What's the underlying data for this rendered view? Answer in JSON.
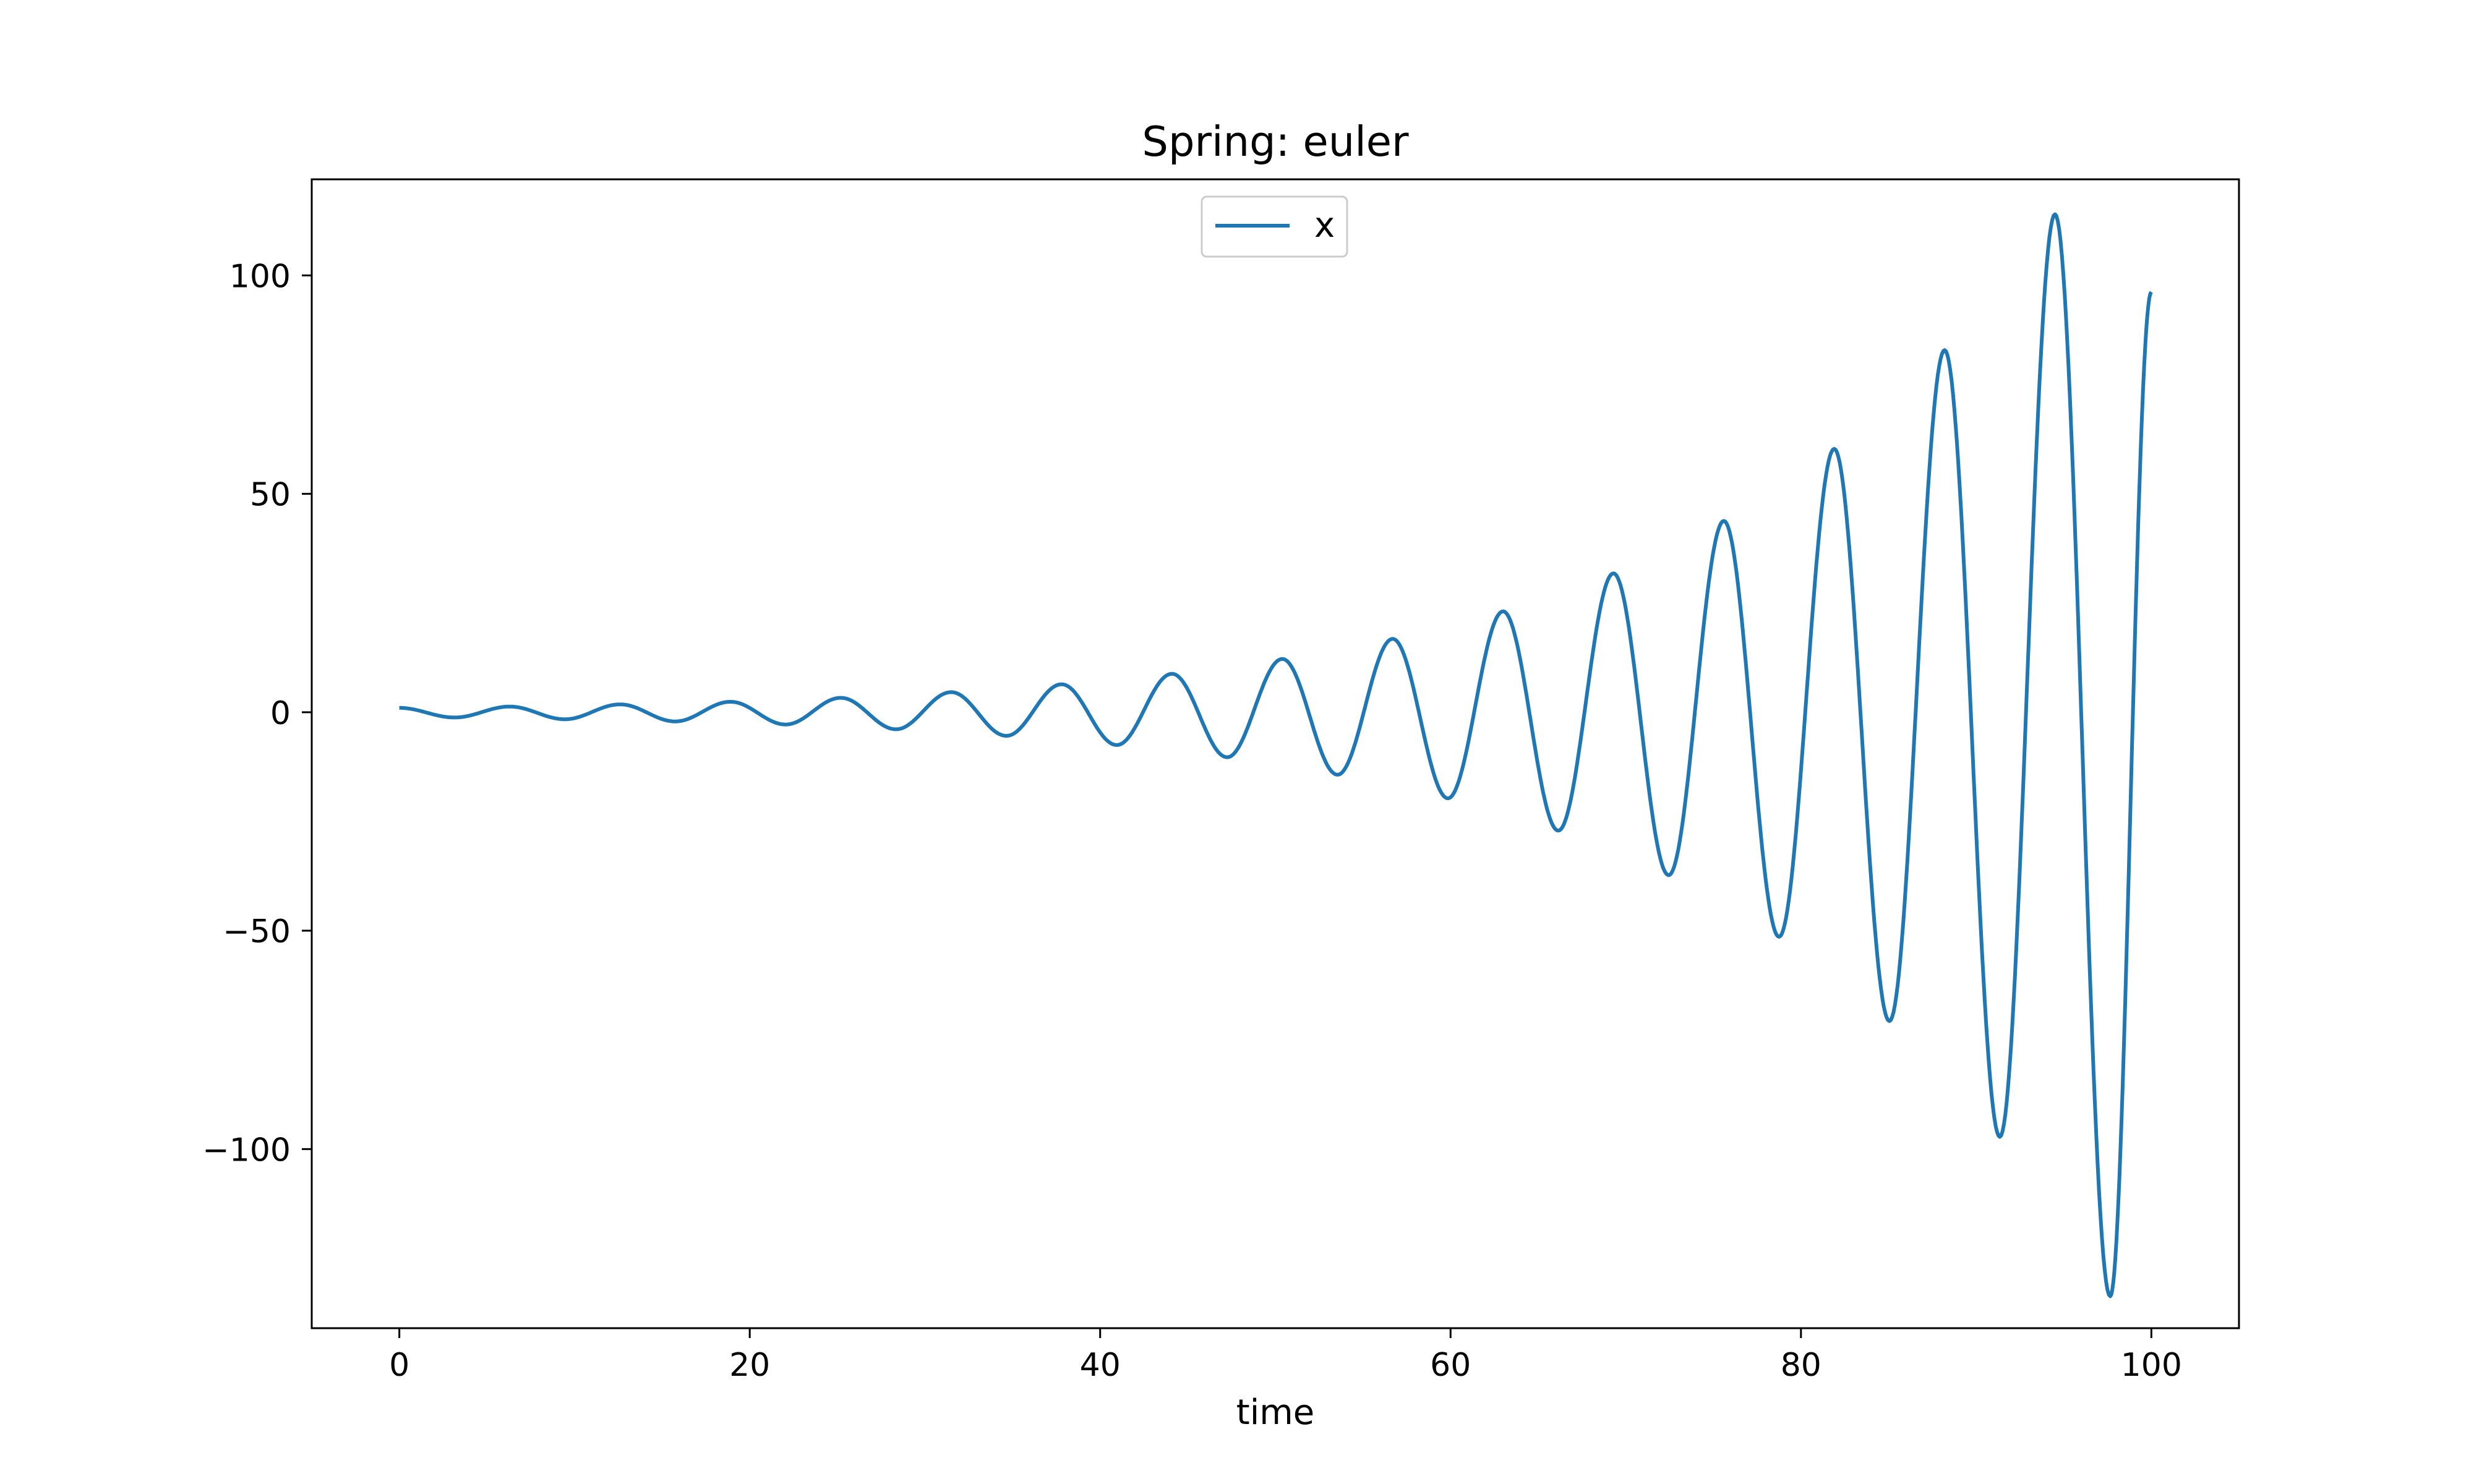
{
  "chart_data": {
    "type": "line",
    "title": "Spring: euler",
    "xlabel": "time",
    "ylabel": "",
    "xlim": [
      -5,
      105
    ],
    "ylim": [
      -141,
      122
    ],
    "xticks": [
      0,
      20,
      40,
      60,
      80,
      100
    ],
    "xtick_labels": [
      "0",
      "20",
      "40",
      "60",
      "80",
      "100"
    ],
    "yticks": [
      -100,
      -50,
      0,
      50,
      100
    ],
    "ytick_labels": [
      "−100",
      "−50",
      "0",
      "50",
      "100"
    ],
    "grid": false,
    "legend": {
      "placement": "upper center",
      "entries": [
        "x"
      ]
    },
    "series": [
      {
        "name": "x",
        "color": "#1f77b4",
        "x": [
          0,
          3.15,
          6.3,
          9.45,
          12.6,
          15.75,
          18.9,
          22.05,
          25.2,
          28.35,
          31.5,
          34.65,
          37.8,
          40.95,
          44.1,
          47.25,
          50.4,
          53.55,
          56.7,
          59.85,
          63.0,
          66.15,
          69.3,
          72.45,
          75.6,
          78.75,
          81.9,
          85.05,
          88.2,
          91.35,
          94.5,
          97.65,
          100
        ],
        "y": [
          1.0,
          -1.2,
          1.3,
          -1.6,
          1.8,
          -2.1,
          2.4,
          -2.8,
          3.3,
          -3.9,
          4.6,
          -5.4,
          6.4,
          -7.5,
          8.8,
          -10.3,
          12.2,
          -14.3,
          16.8,
          -19.7,
          23.1,
          -27.1,
          31.8,
          -37.3,
          43.8,
          -51.4,
          60.3,
          -70.7,
          82.9,
          -97.2,
          114.0,
          -133.7,
          96.2
        ]
      }
    ]
  }
}
